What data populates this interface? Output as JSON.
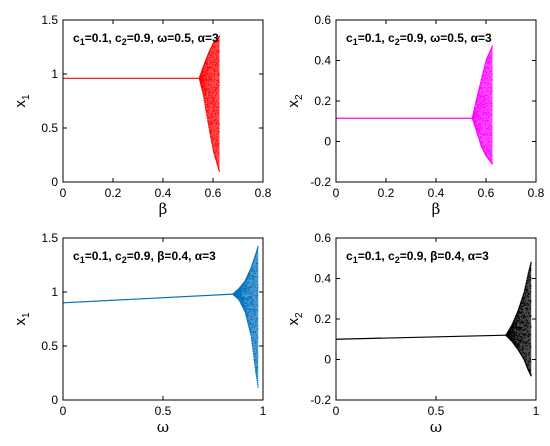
{
  "chart_data": [
    {
      "type": "scatter",
      "panel": "top-left",
      "xlabel": "β",
      "ylabel_main": "x",
      "ylabel_sub": "1",
      "xlim": [
        0,
        0.8
      ],
      "ylim": [
        0,
        1.5
      ],
      "xticks": [
        0,
        0.2,
        0.4,
        0.6,
        0.8
      ],
      "yticks": [
        0,
        0.5,
        1,
        1.5
      ],
      "xtick_labels": [
        "0",
        "0.2",
        "0.4",
        "0.6",
        "0.8"
      ],
      "ytick_labels": [
        "0",
        "0.5",
        "1",
        "1.5"
      ],
      "color": "#ff0000",
      "annotation": [
        {
          "t": "c",
          "s": false
        },
        {
          "t": "1",
          "s": true
        },
        {
          "t": "=0.1, c",
          "s": false
        },
        {
          "t": "2",
          "s": true
        },
        {
          "t": "=0.9, ω=0.5, α=3",
          "s": false
        }
      ],
      "series": {
        "stable": {
          "x_start": 0,
          "x_end": 0.545,
          "y": 0.96
        },
        "bifurcation_x": 0.545,
        "chaos_end_x": 0.625,
        "envelope": [
          {
            "x": 0.545,
            "y_min": 0.96,
            "y_max": 0.96
          },
          {
            "x": 0.56,
            "y_min": 0.82,
            "y_max": 1.06
          },
          {
            "x": 0.58,
            "y_min": 0.55,
            "y_max": 1.18
          },
          {
            "x": 0.6,
            "y_min": 0.3,
            "y_max": 1.28
          },
          {
            "x": 0.625,
            "y_min": 0.1,
            "y_max": 1.35
          }
        ]
      }
    },
    {
      "type": "scatter",
      "panel": "top-right",
      "xlabel": "β",
      "ylabel_main": "x",
      "ylabel_sub": "2",
      "xlim": [
        0,
        0.8
      ],
      "ylim": [
        -0.2,
        0.6
      ],
      "xticks": [
        0,
        0.2,
        0.4,
        0.6,
        0.8
      ],
      "yticks": [
        -0.2,
        0,
        0.2,
        0.4,
        0.6
      ],
      "xtick_labels": [
        "0",
        "0.2",
        "0.4",
        "0.6",
        "0.8"
      ],
      "ytick_labels": [
        "-0.2",
        "0",
        "0.2",
        "0.4",
        "0.6"
      ],
      "color": "#ff00ff",
      "annotation": [
        {
          "t": "c",
          "s": false
        },
        {
          "t": "1",
          "s": true
        },
        {
          "t": "=0.1, c",
          "s": false
        },
        {
          "t": "2",
          "s": true
        },
        {
          "t": "=0.9, ω=0.5, α=3",
          "s": false
        }
      ],
      "series": {
        "stable": {
          "x_start": 0,
          "x_end": 0.545,
          "y": 0.115
        },
        "bifurcation_x": 0.545,
        "chaos_end_x": 0.625,
        "envelope": [
          {
            "x": 0.545,
            "y_min": 0.115,
            "y_max": 0.115
          },
          {
            "x": 0.56,
            "y_min": 0.06,
            "y_max": 0.2
          },
          {
            "x": 0.58,
            "y_min": -0.02,
            "y_max": 0.3
          },
          {
            "x": 0.6,
            "y_min": -0.07,
            "y_max": 0.4
          },
          {
            "x": 0.625,
            "y_min": -0.11,
            "y_max": 0.47
          }
        ]
      }
    },
    {
      "type": "scatter",
      "panel": "bottom-left",
      "xlabel": "ω",
      "ylabel_main": "x",
      "ylabel_sub": "1",
      "xlim": [
        0,
        1
      ],
      "ylim": [
        0,
        1.5
      ],
      "xticks": [
        0,
        0.5,
        1
      ],
      "yticks": [
        0,
        0.5,
        1,
        1.5
      ],
      "xtick_labels": [
        "0",
        "0.5",
        "1"
      ],
      "ytick_labels": [
        "0",
        "0.5",
        "1",
        "1.5"
      ],
      "color": "#0072bd",
      "annotation": [
        {
          "t": "c",
          "s": false
        },
        {
          "t": "1",
          "s": true
        },
        {
          "t": "=0.1, c",
          "s": false
        },
        {
          "t": "2",
          "s": true
        },
        {
          "t": "=0.9, β=0.4, α=3",
          "s": false
        }
      ],
      "series": {
        "stable": {
          "x_start": 0,
          "x_end": 0.85,
          "y_start": 0.9,
          "y_end": 0.98
        },
        "bifurcation_x": 0.85,
        "chaos_end_x": 0.975,
        "envelope": [
          {
            "x": 0.85,
            "y_min": 0.98,
            "y_max": 0.98
          },
          {
            "x": 0.88,
            "y_min": 0.93,
            "y_max": 1.03
          },
          {
            "x": 0.91,
            "y_min": 0.82,
            "y_max": 1.1
          },
          {
            "x": 0.94,
            "y_min": 0.6,
            "y_max": 1.22
          },
          {
            "x": 0.96,
            "y_min": 0.3,
            "y_max": 1.33
          },
          {
            "x": 0.975,
            "y_min": 0.12,
            "y_max": 1.42
          }
        ]
      }
    },
    {
      "type": "scatter",
      "panel": "bottom-right",
      "xlabel": "ω",
      "ylabel_main": "x",
      "ylabel_sub": "2",
      "xlim": [
        0,
        1
      ],
      "ylim": [
        -0.2,
        0.6
      ],
      "xticks": [
        0,
        0.5,
        1
      ],
      "yticks": [
        -0.2,
        0,
        0.2,
        0.4,
        0.6
      ],
      "xtick_labels": [
        "0",
        "0.5",
        "1"
      ],
      "ytick_labels": [
        "-0.2",
        "0",
        "0.2",
        "0.4",
        "0.6"
      ],
      "color": "#000000",
      "annotation": [
        {
          "t": "c",
          "s": false
        },
        {
          "t": "1",
          "s": true
        },
        {
          "t": "=0.1, c",
          "s": false
        },
        {
          "t": "2",
          "s": true
        },
        {
          "t": "=0.9, β=0.4, α=3",
          "s": false
        }
      ],
      "series": {
        "stable": {
          "x_start": 0,
          "x_end": 0.85,
          "y_start": 0.1,
          "y_end": 0.12
        },
        "bifurcation_x": 0.85,
        "chaos_end_x": 0.975,
        "envelope": [
          {
            "x": 0.85,
            "y_min": 0.12,
            "y_max": 0.12
          },
          {
            "x": 0.88,
            "y_min": 0.09,
            "y_max": 0.17
          },
          {
            "x": 0.91,
            "y_min": 0.05,
            "y_max": 0.24
          },
          {
            "x": 0.94,
            "y_min": 0.0,
            "y_max": 0.33
          },
          {
            "x": 0.96,
            "y_min": -0.05,
            "y_max": 0.42
          },
          {
            "x": 0.975,
            "y_min": -0.08,
            "y_max": 0.48
          }
        ]
      }
    }
  ]
}
